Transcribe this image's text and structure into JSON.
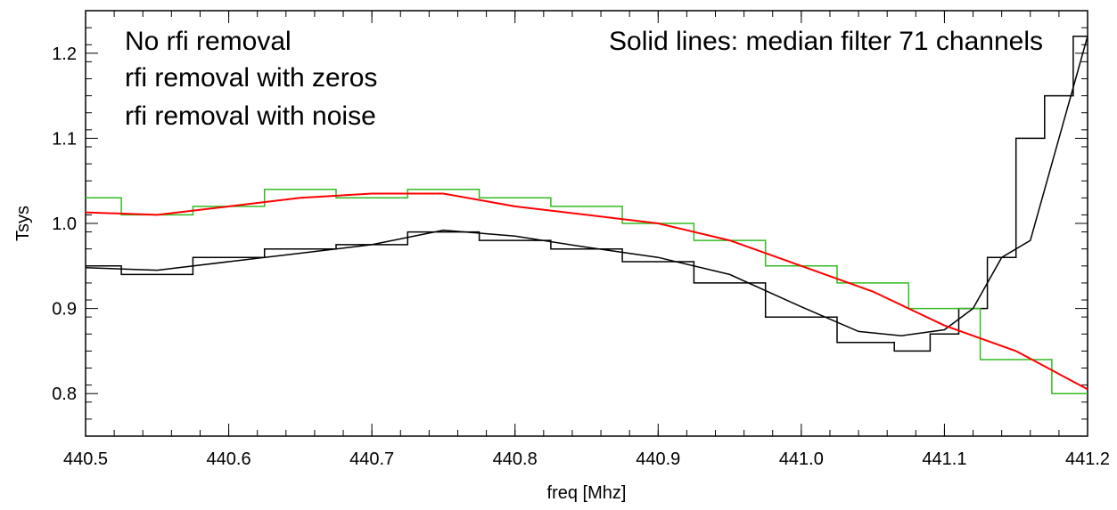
{
  "chart_data": {
    "type": "line",
    "title": "",
    "xlabel": "freq [Mhz]",
    "ylabel": "Tsys",
    "xlim": [
      440.5,
      441.2
    ],
    "ylim": [
      0.75,
      1.25
    ],
    "x_ticks": [
      440.5,
      440.6,
      440.7,
      440.8,
      440.9,
      441.0,
      441.1,
      441.2
    ],
    "x_tick_labels": [
      "440.5",
      "440.6",
      "440.7",
      "440.8",
      "440.9",
      "441.0",
      "441.1",
      "441.2"
    ],
    "y_ticks": [
      0.8,
      0.9,
      1.0,
      1.1,
      1.2
    ],
    "y_tick_labels": [
      "0.8",
      "0.9",
      "1.0",
      "1.1",
      "1.2"
    ],
    "grid": false,
    "annotations": [
      {
        "text": "No rfi removal",
        "color": "#000000",
        "position": "top-left"
      },
      {
        "text": "rfi removal with zeros",
        "color": "#ff0000",
        "position": "top-left"
      },
      {
        "text": "rfi removal with noise",
        "color": "#22cc22",
        "position": "top-left"
      },
      {
        "text": "Solid lines: median filter 71 channels",
        "color": "#000000",
        "position": "top-right"
      }
    ],
    "series": [
      {
        "color": "#000000",
        "style": "histogram-step",
        "x": [
          440.5,
          440.55,
          440.6,
          440.65,
          440.7,
          440.75,
          440.8,
          440.85,
          440.9,
          440.95,
          441.0,
          441.05,
          441.08,
          441.1,
          441.12,
          441.14,
          441.16,
          441.18,
          441.2
        ],
        "values": [
          0.95,
          0.94,
          0.96,
          0.97,
          0.975,
          0.99,
          0.98,
          0.97,
          0.955,
          0.93,
          0.89,
          0.86,
          0.85,
          0.87,
          0.9,
          0.96,
          1.1,
          1.15,
          1.22
        ]
      },
      {
        "color": "#000000",
        "style": "median-filter",
        "x": [
          440.5,
          440.55,
          440.6,
          440.65,
          440.7,
          440.75,
          440.8,
          440.85,
          440.9,
          440.95,
          441.0,
          441.04,
          441.07,
          441.1,
          441.12,
          441.14,
          441.16,
          441.18,
          441.2
        ],
        "values": [
          0.948,
          0.945,
          0.955,
          0.965,
          0.975,
          0.992,
          0.985,
          0.972,
          0.96,
          0.94,
          0.902,
          0.873,
          0.868,
          0.875,
          0.9,
          0.96,
          0.98,
          1.1,
          1.22
        ]
      },
      {
        "color": "#ff0000",
        "style": "median-filter",
        "x": [
          440.5,
          440.55,
          440.6,
          440.65,
          440.7,
          440.75,
          440.8,
          440.85,
          440.9,
          440.95,
          441.0,
          441.05,
          441.1,
          441.15,
          441.2
        ],
        "values": [
          1.013,
          1.01,
          1.02,
          1.03,
          1.035,
          1.035,
          1.02,
          1.01,
          1.0,
          0.98,
          0.95,
          0.92,
          0.88,
          0.85,
          0.805
        ]
      },
      {
        "color": "#33bb22",
        "style": "histogram-step",
        "x": [
          440.5,
          440.55,
          440.6,
          440.65,
          440.7,
          440.75,
          440.8,
          440.85,
          440.9,
          440.95,
          441.0,
          441.05,
          441.1,
          441.15,
          441.2
        ],
        "values": [
          1.03,
          1.01,
          1.02,
          1.04,
          1.03,
          1.04,
          1.03,
          1.02,
          1.0,
          0.98,
          0.95,
          0.93,
          0.9,
          0.84,
          0.8
        ]
      }
    ]
  }
}
